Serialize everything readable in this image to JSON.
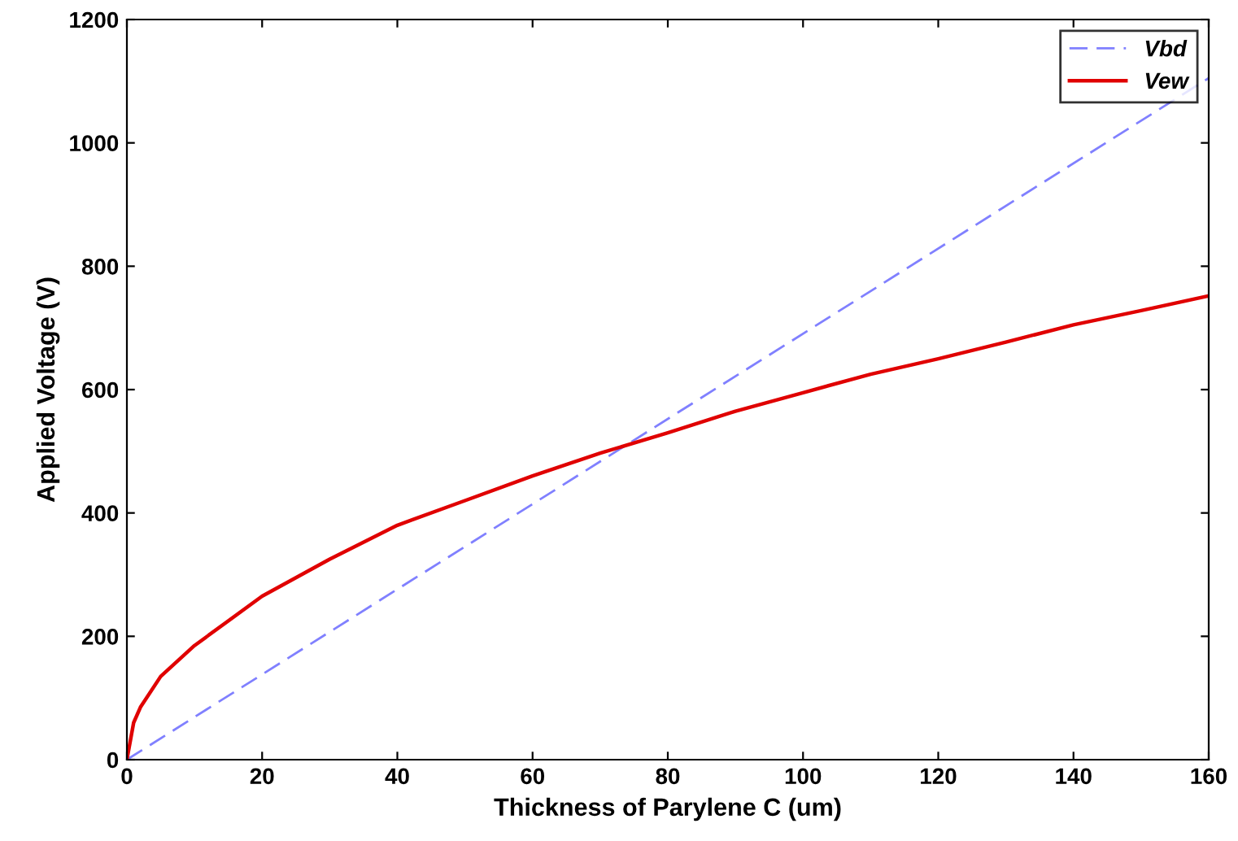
{
  "chart_data": {
    "type": "line",
    "xlabel": "Thickness of Parylene C (um)",
    "ylabel": "Applied Voltage (V)",
    "xlim": [
      0,
      160
    ],
    "ylim": [
      0,
      1200
    ],
    "xticks": [
      0,
      20,
      40,
      60,
      80,
      100,
      120,
      140,
      160
    ],
    "yticks": [
      0,
      200,
      400,
      600,
      800,
      1000,
      1200
    ],
    "grid": false,
    "legend": "top right",
    "series": [
      {
        "name": "Vbd",
        "color": "#8080ff",
        "line_style": "dashed",
        "x": [
          0,
          160
        ],
        "values": [
          0,
          1105
        ]
      },
      {
        "name": "Vew",
        "color": "#e00000",
        "line_style": "solid",
        "x": [
          0,
          1,
          2,
          5,
          10,
          20,
          30,
          40,
          50,
          60,
          70,
          80,
          90,
          100,
          110,
          120,
          130,
          140,
          150,
          160
        ],
        "values": [
          0,
          60,
          85,
          135,
          185,
          265,
          325,
          380,
          420,
          460,
          497,
          530,
          565,
          595,
          625,
          650,
          677,
          705,
          728,
          752
        ]
      }
    ]
  }
}
